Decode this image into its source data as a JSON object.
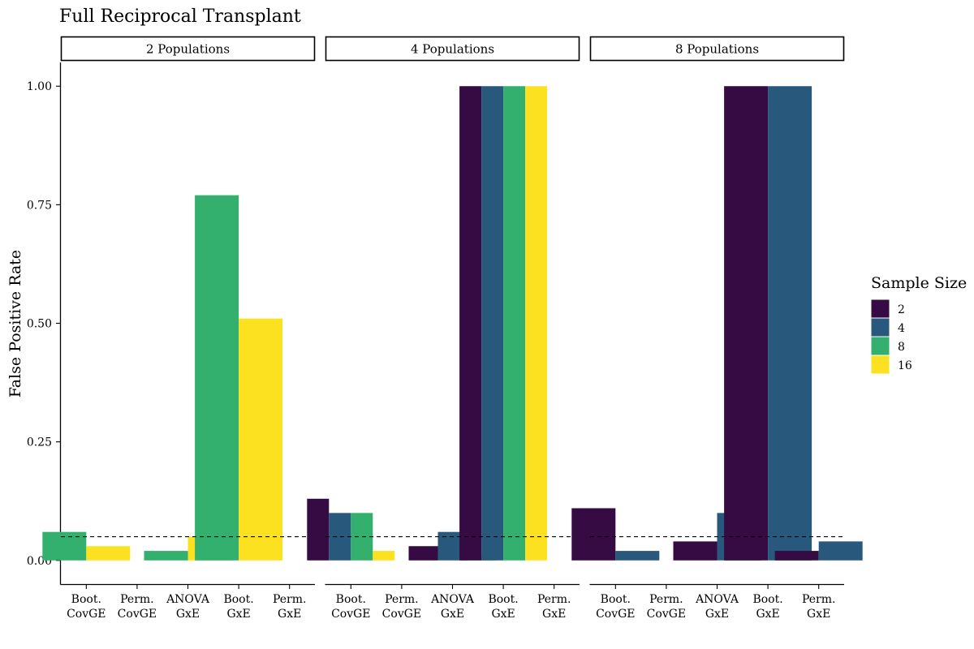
{
  "chart_data": {
    "type": "bar",
    "title": "Full Reciprocal Transplant",
    "xlabel": "",
    "ylabel": "False Positive Rate",
    "ylim": [
      -0.05,
      1.05
    ],
    "yticks": [
      "0.00",
      "0.25",
      "0.50",
      "0.75",
      "1.00"
    ],
    "reference_line": {
      "y": 0.05,
      "style": "dashed"
    },
    "grid": false,
    "legend": {
      "title": "Sample Size",
      "position": "right",
      "entries": [
        {
          "label": "2",
          "color": "#360a42"
        },
        {
          "label": "4",
          "color": "#29587d"
        },
        {
          "label": "8",
          "color": "#33b06d"
        },
        {
          "label": "16",
          "color": "#fbe11f"
        }
      ]
    },
    "categories": [
      [
        "Boot.",
        "CovGE"
      ],
      [
        "Perm.",
        "CovGE"
      ],
      [
        "ANOVA",
        "GxE"
      ],
      [
        "Boot.",
        "GxE"
      ],
      [
        "Perm.",
        "GxE"
      ]
    ],
    "panels": [
      {
        "label": "2 Populations",
        "groups": [
          {
            "bars": [
              {
                "size": "8",
                "value": 0.06
              },
              {
                "size": "16",
                "value": 0.03
              }
            ]
          },
          {
            "bars": []
          },
          {
            "bars": [
              {
                "size": "8",
                "value": 0.02
              },
              {
                "size": "16",
                "value": 0.05
              }
            ]
          },
          {
            "bars": [
              {
                "size": "8",
                "value": 0.77
              },
              {
                "size": "16",
                "value": 0.51
              }
            ]
          },
          {
            "bars": []
          }
        ]
      },
      {
        "label": "4 Populations",
        "groups": [
          {
            "bars": [
              {
                "size": "2",
                "value": 0.13
              },
              {
                "size": "4",
                "value": 0.1
              },
              {
                "size": "8",
                "value": 0.1
              },
              {
                "size": "16",
                "value": 0.02
              }
            ]
          },
          {
            "bars": []
          },
          {
            "bars": [
              {
                "size": "2",
                "value": 0.03
              },
              {
                "size": "4",
                "value": 0.06
              },
              {
                "size": "8",
                "value": 0.01
              }
            ]
          },
          {
            "bars": [
              {
                "size": "2",
                "value": 1.0
              },
              {
                "size": "4",
                "value": 1.0
              },
              {
                "size": "8",
                "value": 1.0
              },
              {
                "size": "16",
                "value": 1.0
              }
            ]
          },
          {
            "bars": []
          }
        ]
      },
      {
        "label": "8 Populations",
        "groups": [
          {
            "bars": [
              {
                "size": "2",
                "value": 0.11
              },
              {
                "size": "4",
                "value": 0.02
              }
            ]
          },
          {
            "bars": []
          },
          {
            "bars": [
              {
                "size": "2",
                "value": 0.04
              },
              {
                "size": "4",
                "value": 0.1
              }
            ]
          },
          {
            "bars": [
              {
                "size": "2",
                "value": 1.0
              },
              {
                "size": "4",
                "value": 1.0
              }
            ]
          },
          {
            "bars": [
              {
                "size": "2",
                "value": 0.02
              },
              {
                "size": "4",
                "value": 0.04
              }
            ]
          }
        ]
      }
    ]
  }
}
